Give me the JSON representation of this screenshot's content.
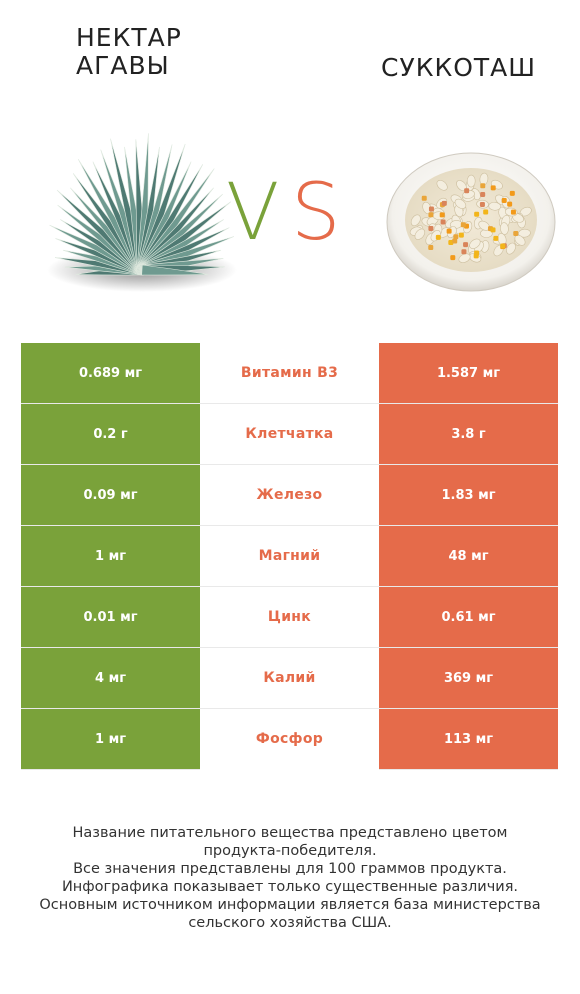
{
  "header": {
    "left_title_line1": "НЕКТАР",
    "left_title_line2": "АГАВЫ",
    "right_title": "СУККОТАШ",
    "vs_v": "V",
    "vs_s": "S"
  },
  "colors": {
    "left": "#7aa23a",
    "right": "#e56b4a"
  },
  "rows": [
    {
      "left": "0.689 мг",
      "nutrient": "Витамин B3",
      "right": "1.587 мг",
      "winner": "right"
    },
    {
      "left": "0.2 г",
      "nutrient": "Клетчатка",
      "right": "3.8 г",
      "winner": "right"
    },
    {
      "left": "0.09 мг",
      "nutrient": "Железо",
      "right": "1.83 мг",
      "winner": "right"
    },
    {
      "left": "1 мг",
      "nutrient": "Магний",
      "right": "48 мг",
      "winner": "right"
    },
    {
      "left": "0.01 мг",
      "nutrient": "Цинк",
      "right": "0.61 мг",
      "winner": "right"
    },
    {
      "left": "4 мг",
      "nutrient": "Калий",
      "right": "369 мг",
      "winner": "right"
    },
    {
      "left": "1 мг",
      "nutrient": "Фосфор",
      "right": "113 мг",
      "winner": "right"
    }
  ],
  "footnote": {
    "line1": "Название питательного вещества представлено цветом",
    "line2": "продукта-победителя.",
    "line3": "Все значения представлены для 100 граммов продукта.",
    "line4": "Инфографика показывает только существенные различия.",
    "line5": "Основным источником информации является база министерства",
    "line6": "сельского хозяйства США."
  }
}
